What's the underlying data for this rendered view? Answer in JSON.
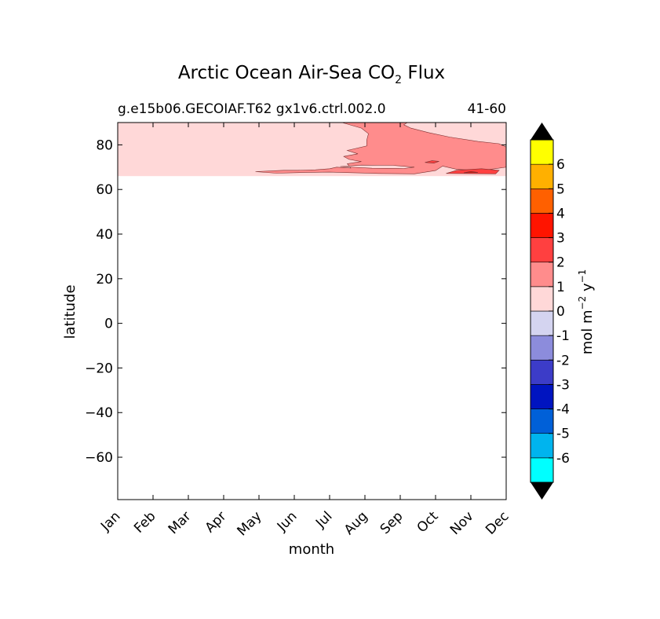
{
  "chart_data": {
    "type": "contour",
    "title_main": "Arctic Ocean Air-Sea CO",
    "title_sub": "2",
    "title_end": " Flux",
    "case_name": "g.e15b06.GECOIAF.T62 gx1v6.ctrl.002.0",
    "years": "41-60",
    "xlabel": "month",
    "ylabel": "latitude",
    "x_categories": [
      "Jan",
      "Feb",
      "Mar",
      "Apr",
      "May",
      "Jun",
      "Jul",
      "Aug",
      "Sep",
      "Oct",
      "Nov",
      "Dec"
    ],
    "y_ticks": [
      "80",
      "60",
      "40",
      "20",
      "0",
      "−20",
      "−40",
      "−60"
    ],
    "y_tick_values": [
      80,
      60,
      40,
      20,
      0,
      -20,
      -40,
      -60
    ],
    "ylim": [
      -79,
      90
    ],
    "data_lat_range": [
      66,
      90
    ],
    "colorbar_label_main": "mol m",
    "colorbar_label_exp1": "−2",
    "colorbar_label_mid": "  y",
    "colorbar_label_exp2": "−1",
    "colorbar_levels": [
      "-6",
      "-5",
      "-4",
      "-3",
      "-2",
      "-1",
      "0",
      "1",
      "2",
      "3",
      "4",
      "5",
      "6"
    ],
    "colorbar_colors": [
      "#00ffff",
      "#00b4ee",
      "#0060d8",
      "#0014c0",
      "#3c3cc8",
      "#8c8cdc",
      "#d4d4f0",
      "#ffd8d8",
      "#ff8c8c",
      "#ff4040",
      "#ff1400",
      "#ff6000",
      "#ffb000",
      "#ffff00"
    ],
    "extend_colors": {
      "min": "#000000",
      "max": "#000000"
    },
    "regions": [
      {
        "name": "flux 0 to 1",
        "color": "#ffd8d8"
      },
      {
        "name": "flux 1 to 2",
        "color": "#ff8c8c"
      },
      {
        "name": "flux 2 to 3",
        "color": "#ff4040"
      },
      {
        "name": "flux 3 to 4",
        "color": "#ff1400"
      }
    ]
  }
}
